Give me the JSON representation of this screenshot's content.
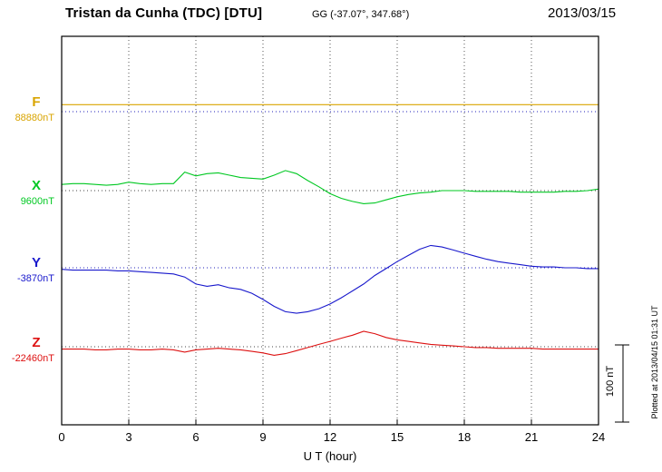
{
  "header": {
    "title": "Tristan da Cunha (TDC)  [DTU]",
    "coords": "GG (-37.07°, 347.68°)",
    "date": "2013/03/15"
  },
  "axis": {
    "xlabel": "U T (hour)"
  },
  "scalebar": {
    "label": "100 nT"
  },
  "footer": {
    "plotted_at": "Plotted at 2013/04/15 01:31 UT"
  },
  "chart_data": {
    "type": "line",
    "title": "Magnetogram Tristan da Cunha (TDC) [DTU] 2013/03/15",
    "xlabel": "U T (hour)",
    "xlim": [
      0,
      24
    ],
    "x_ticks": [
      0,
      3,
      6,
      9,
      12,
      15,
      18,
      21,
      24
    ],
    "x_start_hours": 0,
    "x_step_hours": 0.5,
    "grid": "dotted vertical lines every 3 hours; dotted horizontal baseline per component",
    "scale_bar_nT": 100,
    "series": [
      {
        "name": "F",
        "color": "#d9a400",
        "baseline_color": "#2222bb",
        "baseline_nT": 88880,
        "baseline_label": "88880nT",
        "offsets_nT": [
          9,
          9,
          9,
          9,
          9,
          9,
          9,
          9,
          9,
          9,
          9,
          9,
          9,
          9,
          9,
          9,
          9,
          9,
          9,
          9,
          9,
          9,
          9,
          9,
          9,
          9,
          9,
          9,
          9,
          9,
          9,
          9,
          9,
          9,
          9,
          9,
          9,
          9,
          9,
          9,
          9,
          9,
          9,
          9,
          9,
          9,
          9,
          9,
          9
        ]
      },
      {
        "name": "X",
        "color": "#00c822",
        "baseline_color": "#444444",
        "baseline_nT": 9600,
        "baseline_label": "9600nT",
        "offsets_nT": [
          8,
          9,
          9,
          8,
          7,
          8,
          11,
          9,
          8,
          9,
          9,
          24,
          19,
          22,
          23,
          20,
          17,
          16,
          15,
          20,
          26,
          22,
          13,
          5,
          -4,
          -10,
          -14,
          -17,
          -16,
          -12,
          -8,
          -5,
          -3,
          -2,
          0,
          0,
          0,
          -1,
          -1,
          -1,
          -1,
          -2,
          -2,
          -2,
          -2,
          -1,
          -1,
          0,
          2
        ]
      },
      {
        "name": "Y",
        "color": "#1818cc",
        "baseline_color": "#2222bb",
        "baseline_nT": -3870,
        "baseline_label": "-3870nT",
        "offsets_nT": [
          -2,
          -3,
          -3,
          -3,
          -3,
          -4,
          -4,
          -5,
          -6,
          -7,
          -8,
          -12,
          -21,
          -24,
          -22,
          -26,
          -28,
          -33,
          -41,
          -50,
          -57,
          -59,
          -57,
          -53,
          -47,
          -39,
          -30,
          -21,
          -10,
          -1,
          8,
          16,
          24,
          29,
          27,
          23,
          19,
          15,
          11,
          8,
          6,
          4,
          2,
          1,
          1,
          0,
          0,
          -1,
          -1
        ]
      },
      {
        "name": "Z",
        "color": "#dd1111",
        "baseline_color": "#444444",
        "baseline_nT": -22460,
        "baseline_label": "-22460nT",
        "offsets_nT": [
          -3,
          -3,
          -3,
          -4,
          -4,
          -3,
          -3,
          -4,
          -4,
          -3,
          -4,
          -7,
          -4,
          -3,
          -2,
          -3,
          -4,
          -6,
          -8,
          -11,
          -9,
          -5,
          -1,
          3,
          7,
          11,
          15,
          20,
          17,
          12,
          9,
          7,
          5,
          3,
          2,
          1,
          0,
          -1,
          -1,
          -2,
          -2,
          -2,
          -2,
          -3,
          -3,
          -3,
          -3,
          -3,
          -3
        ]
      }
    ]
  }
}
